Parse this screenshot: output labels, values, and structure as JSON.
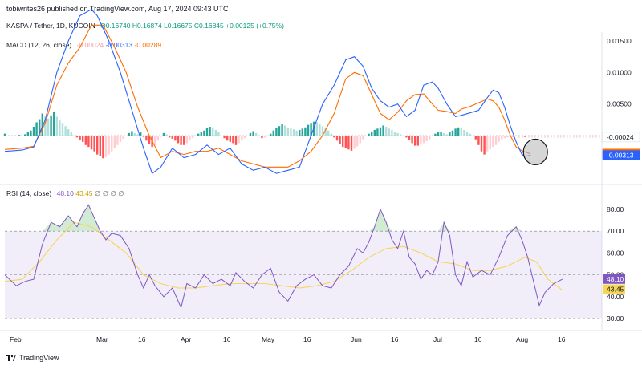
{
  "header": {
    "publisher": "tobiwrites26 published on TradingView.com, Aug 17, 2024 09:43 UTC",
    "symbol": "KASPA / Tether, 1D, KUCOIN",
    "open": "O0.16740",
    "high": "H0.16874",
    "low": "L0.16675",
    "close": "C0.16845",
    "change": "+0.00125 (+0.75%)"
  },
  "macd_legend": {
    "label": "MACD (12, 26, close)",
    "histogram": "-0.00024",
    "macd": "-0.00313",
    "signal": "-0.00289"
  },
  "rsi_legend": {
    "label": "RSI (14, close)",
    "rsi": "48.10",
    "ma": "43.45",
    "extras": [
      "∅",
      "∅",
      "∅",
      "∅"
    ]
  },
  "footer": {
    "brand": "TradingView"
  },
  "colors": {
    "macd_line": "#2962ff",
    "signal_line": "#ff6d00",
    "hist_pos_strong": "#26a69a",
    "hist_pos_weak": "#b2dfdb",
    "hist_neg_strong": "#ff5252",
    "hist_neg_weak": "#ffcdd2",
    "rsi_line": "#7e57c2",
    "rsi_ma": "#f5d55a",
    "rsi_band": "#7e57c2"
  },
  "chart_data": [
    {
      "type": "line",
      "panel": "MACD",
      "y_ticks": [
        0.015,
        0.01,
        0.005
      ],
      "y_tick_labels": [
        "0.01500",
        "0.01000",
        "0.00500"
      ],
      "ylim": [
        -0.0075,
        0.0164
      ],
      "x_ticks": [
        "Feb",
        "Mar",
        "16",
        "Apr",
        "16",
        "May",
        "16",
        "Jun",
        "16",
        "Jul",
        "16",
        "Aug",
        "16"
      ],
      "price_tags": [
        {
          "value": -0.00024,
          "label": "-0.00024",
          "color": "#ffffff",
          "text_color": "#131722"
        },
        {
          "value": -0.00289,
          "label": "-0.00289",
          "color": "#ff6d00",
          "text_color": "#ffffff"
        },
        {
          "value": -0.00313,
          "label": "-0.00313",
          "color": "#2962ff",
          "text_color": "#ffffff"
        }
      ],
      "macd_points": [
        [
          0,
          -0.0025
        ],
        [
          6,
          -0.0023
        ],
        [
          10,
          -0.0018
        ],
        [
          14,
          0.0025
        ],
        [
          18,
          0.01
        ],
        [
          22,
          0.015
        ],
        [
          26,
          0.019
        ],
        [
          30,
          0.02
        ],
        [
          32,
          0.019
        ],
        [
          36,
          0.015
        ],
        [
          40,
          0.01
        ],
        [
          44,
          0.004
        ],
        [
          48,
          -0.002
        ],
        [
          51,
          -0.006
        ],
        [
          54,
          -0.005
        ],
        [
          58,
          -0.002
        ],
        [
          62,
          -0.0035
        ],
        [
          66,
          -0.003
        ],
        [
          70,
          -0.0015
        ],
        [
          74,
          -0.003
        ],
        [
          78,
          -0.002
        ],
        [
          82,
          -0.0045
        ],
        [
          86,
          -0.0055
        ],
        [
          90,
          -0.005
        ],
        [
          94,
          -0.006
        ],
        [
          98,
          -0.0055
        ],
        [
          102,
          -0.005
        ],
        [
          106,
          0.0
        ],
        [
          110,
          0.005
        ],
        [
          114,
          0.008
        ],
        [
          118,
          0.012
        ],
        [
          121,
          0.0125
        ],
        [
          124,
          0.011
        ],
        [
          127,
          0.0075
        ],
        [
          130,
          0.0055
        ],
        [
          133,
          0.0045
        ],
        [
          136,
          0.005
        ],
        [
          139,
          0.003
        ],
        [
          142,
          0.004
        ],
        [
          145,
          0.008
        ],
        [
          148,
          0.0085
        ],
        [
          150,
          0.0075
        ],
        [
          153,
          0.005
        ],
        [
          156,
          0.003
        ],
        [
          158,
          0.0032
        ],
        [
          161,
          0.0036
        ],
        [
          164,
          0.004
        ],
        [
          167,
          0.006
        ],
        [
          169,
          0.0072
        ],
        [
          171,
          0.0068
        ],
        [
          173,
          0.0045
        ],
        [
          175,
          0.0015
        ],
        [
          177,
          -0.001
        ],
        [
          179,
          -0.003
        ],
        [
          180,
          -0.0033
        ],
        [
          182,
          -0.0031
        ]
      ],
      "signal_points": [
        [
          0,
          -0.0022
        ],
        [
          6,
          -0.002
        ],
        [
          10,
          -0.0017
        ],
        [
          14,
          0.002
        ],
        [
          18,
          0.008
        ],
        [
          22,
          0.0115
        ],
        [
          26,
          0.014
        ],
        [
          30,
          0.0175
        ],
        [
          34,
          0.0175
        ],
        [
          38,
          0.014
        ],
        [
          42,
          0.01
        ],
        [
          46,
          0.0045
        ],
        [
          50,
          0.0
        ],
        [
          54,
          -0.0035
        ],
        [
          58,
          -0.0025
        ],
        [
          62,
          -0.003
        ],
        [
          66,
          -0.0025
        ],
        [
          70,
          -0.0025
        ],
        [
          74,
          -0.002
        ],
        [
          78,
          -0.003
        ],
        [
          82,
          -0.004
        ],
        [
          86,
          -0.0045
        ],
        [
          90,
          -0.005
        ],
        [
          94,
          -0.005
        ],
        [
          98,
          -0.005
        ],
        [
          102,
          -0.004
        ],
        [
          106,
          -0.0025
        ],
        [
          110,
          0.0
        ],
        [
          114,
          0.0035
        ],
        [
          118,
          0.009
        ],
        [
          121,
          0.01
        ],
        [
          124,
          0.0095
        ],
        [
          127,
          0.0065
        ],
        [
          130,
          0.0035
        ],
        [
          133,
          0.0025
        ],
        [
          136,
          0.0037
        ],
        [
          139,
          0.0055
        ],
        [
          142,
          0.0065
        ],
        [
          145,
          0.0066
        ],
        [
          148,
          0.005
        ],
        [
          150,
          0.004
        ],
        [
          153,
          0.0038
        ],
        [
          156,
          0.0035
        ],
        [
          158,
          0.0042
        ],
        [
          161,
          0.0046
        ],
        [
          164,
          0.0052
        ],
        [
          167,
          0.0058
        ],
        [
          169,
          0.0055
        ],
        [
          171,
          0.0045
        ],
        [
          173,
          0.0025
        ],
        [
          175,
          0.0
        ],
        [
          177,
          -0.0018
        ],
        [
          179,
          -0.0024
        ],
        [
          182,
          -0.0029
        ]
      ],
      "histogram": [
        0.0003,
        0.0,
        0.0,
        0.0,
        0.0,
        0.0001,
        0.0,
        0.0002,
        0.0005,
        0.0008,
        0.0014,
        0.0021,
        0.0026,
        0.0035,
        0.003,
        0.0027,
        0.0032,
        0.0037,
        0.003,
        0.0024,
        0.002,
        0.0015,
        0.001,
        0.0005,
        0.0,
        -0.0003,
        -0.0007,
        -0.001,
        -0.0015,
        -0.0018,
        -0.0022,
        -0.0025,
        -0.003,
        -0.0033,
        -0.0036,
        -0.0034,
        -0.003,
        -0.0025,
        -0.002,
        -0.0015,
        -0.001,
        -0.0005,
        0.0,
        0.0004,
        0.0007,
        0.0004,
        0.0002,
        0.0005,
        -0.0002,
        -0.0008,
        -0.0014,
        -0.0018,
        -0.0015,
        -0.0008,
        -0.0002,
        0.0004,
        0.0002,
        -0.0003,
        -0.0005,
        -0.0008,
        -0.0012,
        -0.0015,
        -0.0015,
        -0.0012,
        -0.0008,
        -0.0004,
        0.0,
        0.0003,
        0.0005,
        0.0008,
        0.0012,
        0.0014,
        0.0013,
        0.0009,
        0.0005,
        0.0,
        -0.0004,
        -0.0008,
        -0.001,
        -0.0012,
        -0.0015,
        -0.0012,
        -0.0008,
        -0.0004,
        0.0,
        0.0004,
        0.0007,
        0.0004,
        0.0,
        -0.0004,
        -0.0003,
        0.0,
        0.0003,
        0.0008,
        0.0012,
        0.0015,
        0.0018,
        0.0016,
        0.0013,
        0.0011,
        0.001,
        0.0008,
        0.0009,
        0.0011,
        0.0013,
        0.0017,
        0.002,
        0.0022,
        0.0021,
        0.0018,
        0.0015,
        0.0012,
        0.0008,
        0.0003,
        -0.0003,
        -0.0008,
        -0.0013,
        -0.0018,
        -0.002,
        -0.0022,
        -0.0024,
        -0.0021,
        -0.0017,
        -0.0012,
        -0.0006,
        0.0,
        0.0003,
        0.0006,
        0.0009,
        0.0011,
        0.0013,
        0.0016,
        0.0014,
        0.0011,
        0.0009,
        0.0006,
        0.0004,
        0.0002,
        0.0,
        -0.0003,
        -0.0007,
        -0.0012,
        -0.0016,
        -0.0016,
        -0.0014,
        -0.0012,
        -0.0009,
        -0.0006,
        0.0,
        0.0003,
        0.0005,
        0.0006,
        0.0004,
        0.0002,
        0.0005,
        0.0008,
        0.0011,
        0.0013,
        0.0012,
        0.0009,
        0.0006,
        0.0003,
        0.0,
        -0.0006,
        -0.0015,
        -0.0025,
        -0.003,
        -0.0025,
        -0.0022,
        -0.0018,
        -0.0015,
        -0.001,
        -0.0006,
        -0.0004,
        -0.0003,
        -0.0002,
        -0.0002,
        -0.0001,
        -0.0001,
        -0.0001,
        -0.0002
      ]
    },
    {
      "type": "line",
      "panel": "RSI",
      "ylim": [
        26,
        84
      ],
      "y_ticks": [
        80,
        70,
        60,
        50,
        40,
        30
      ],
      "y_tick_labels": [
        "80.00",
        "70.00",
        "60.00",
        "50.00",
        "40.00",
        "30.00"
      ],
      "bands": [
        70,
        50,
        30
      ],
      "price_tags": [
        {
          "value": 48.1,
          "label": "48.10",
          "color": "#7e57c2",
          "text_color": "#ffffff"
        },
        {
          "value": 43.45,
          "label": "43.45",
          "color": "#f5d55a",
          "text_color": "#131722"
        }
      ],
      "rsi_points": [
        [
          0,
          50
        ],
        [
          4,
          45
        ],
        [
          7,
          47
        ],
        [
          10,
          48
        ],
        [
          13,
          64
        ],
        [
          16,
          74
        ],
        [
          19,
          72
        ],
        [
          22,
          77
        ],
        [
          25,
          72
        ],
        [
          27,
          78
        ],
        [
          29,
          82
        ],
        [
          31,
          76
        ],
        [
          33,
          70
        ],
        [
          35,
          66
        ],
        [
          37,
          69
        ],
        [
          40,
          68
        ],
        [
          43,
          62
        ],
        [
          46,
          50
        ],
        [
          48,
          44
        ],
        [
          50,
          50
        ],
        [
          52,
          45
        ],
        [
          55,
          40
        ],
        [
          58,
          44
        ],
        [
          61,
          35
        ],
        [
          63,
          46
        ],
        [
          66,
          44
        ],
        [
          69,
          50
        ],
        [
          72,
          46
        ],
        [
          75,
          48
        ],
        [
          78,
          45
        ],
        [
          80,
          51
        ],
        [
          83,
          47
        ],
        [
          86,
          44
        ],
        [
          89,
          50
        ],
        [
          92,
          53
        ],
        [
          95,
          42
        ],
        [
          98,
          38
        ],
        [
          101,
          45
        ],
        [
          104,
          48
        ],
        [
          107,
          50
        ],
        [
          110,
          45
        ],
        [
          113,
          44
        ],
        [
          116,
          50
        ],
        [
          119,
          54
        ],
        [
          122,
          62
        ],
        [
          124,
          60
        ],
        [
          126,
          65
        ],
        [
          128,
          72
        ],
        [
          130,
          80
        ],
        [
          132,
          74
        ],
        [
          134,
          66
        ],
        [
          136,
          62
        ],
        [
          138,
          70
        ],
        [
          140,
          58
        ],
        [
          142,
          55
        ],
        [
          144,
          48
        ],
        [
          146,
          52
        ],
        [
          148,
          50
        ],
        [
          150,
          56
        ],
        [
          152,
          74
        ],
        [
          154,
          68
        ],
        [
          156,
          50
        ],
        [
          158,
          45
        ],
        [
          160,
          56
        ],
        [
          162,
          49
        ],
        [
          165,
          52
        ],
        [
          168,
          50
        ],
        [
          171,
          58
        ],
        [
          174,
          68
        ],
        [
          177,
          72
        ],
        [
          179,
          66
        ],
        [
          181,
          58
        ],
        [
          183,
          47
        ],
        [
          185,
          36
        ],
        [
          187,
          42
        ],
        [
          190,
          46
        ],
        [
          193,
          48
        ]
      ],
      "ma_points": [
        [
          0,
          47
        ],
        [
          6,
          48
        ],
        [
          12,
          56
        ],
        [
          18,
          66
        ],
        [
          24,
          74
        ],
        [
          30,
          72
        ],
        [
          36,
          66
        ],
        [
          42,
          60
        ],
        [
          48,
          50
        ],
        [
          54,
          46
        ],
        [
          60,
          44
        ],
        [
          66,
          44
        ],
        [
          72,
          45
        ],
        [
          78,
          46
        ],
        [
          84,
          46
        ],
        [
          90,
          46
        ],
        [
          96,
          45
        ],
        [
          102,
          44
        ],
        [
          108,
          45
        ],
        [
          114,
          47
        ],
        [
          120,
          52
        ],
        [
          126,
          58
        ],
        [
          132,
          62
        ],
        [
          138,
          63
        ],
        [
          144,
          60
        ],
        [
          150,
          56
        ],
        [
          156,
          55
        ],
        [
          162,
          52
        ],
        [
          168,
          52
        ],
        [
          174,
          54
        ],
        [
          180,
          58
        ],
        [
          184,
          56
        ],
        [
          188,
          48
        ],
        [
          193,
          43
        ]
      ]
    }
  ]
}
